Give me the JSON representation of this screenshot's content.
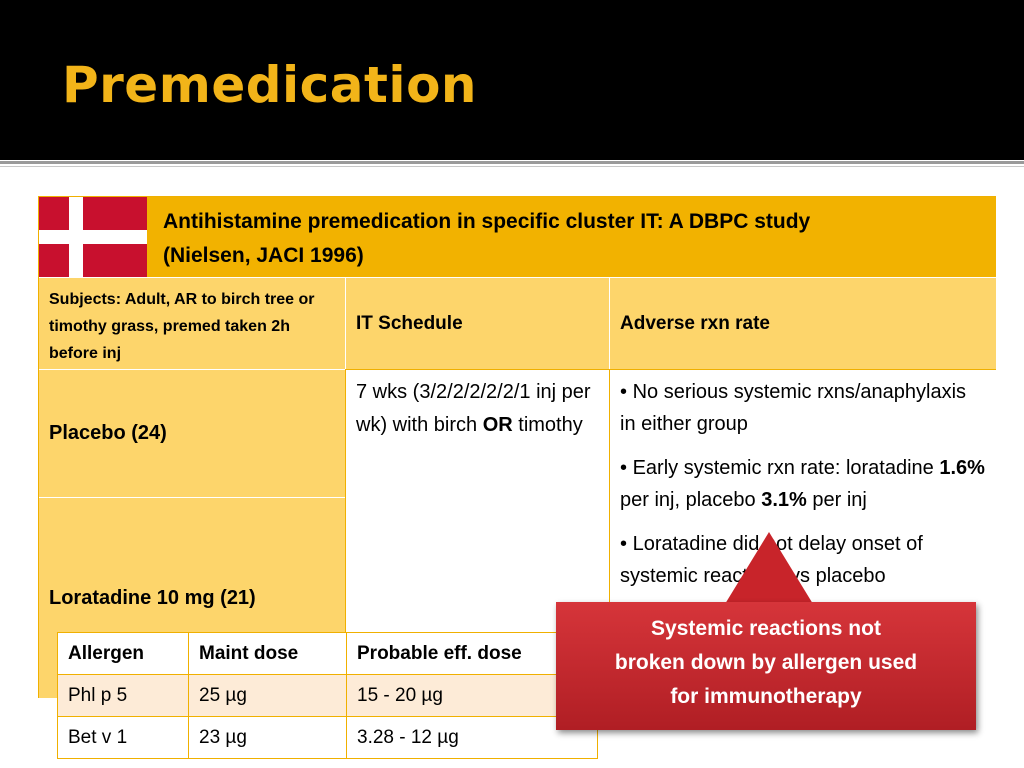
{
  "slide": {
    "title": "Premedication"
  },
  "study": {
    "header_line1": "Antihistamine premedication in specific cluster IT: A DBPC study",
    "header_line2": "(Nielsen, JACI 1996)",
    "flag_icon": "denmark-flag-icon",
    "subjects": "Subjects: Adult, AR to birch tree or timothy grass, premed taken 2h before inj",
    "col_schedule": "IT Schedule",
    "col_adverse": "Adverse rxn rate",
    "row_placebo": "Placebo (24)",
    "row_loratadine": "Loratadine 10 mg (21)",
    "schedule_text_a": "7 wks (3/2/2/2/2/2/1 inj per wk) with birch ",
    "schedule_or": "OR",
    "schedule_text_b": " timothy",
    "bullet": "•",
    "adverse_1": "No serious systemic rxns/anaphylaxis in either group",
    "adverse_2_a": "Early systemic rxn rate: loratadine ",
    "adverse_2_b": "1.6%",
    "adverse_2_c": " per inj, placebo ",
    "adverse_2_d": "3.1%",
    "adverse_2_e": " per inj",
    "adverse_3": "Loratadine did not delay onset of systemic reactions vs placebo"
  },
  "allergen_table": {
    "headers": [
      "Allergen",
      "Maint dose",
      "Probable eff. dose"
    ],
    "rows": [
      [
        "Phl p 5",
        "25 µg",
        "15 - 20 µg"
      ],
      [
        "Bet v 1",
        "23 µg",
        "3.28 - 12 µg"
      ]
    ]
  },
  "callout": {
    "line1": "Systemic reactions not",
    "line2": "broken down by allergen used",
    "line3": "for immunotherapy"
  },
  "colors": {
    "title": "#f2b419",
    "header": "#f2b200",
    "cell": "#fdd56b",
    "callout": "#c8242a"
  }
}
